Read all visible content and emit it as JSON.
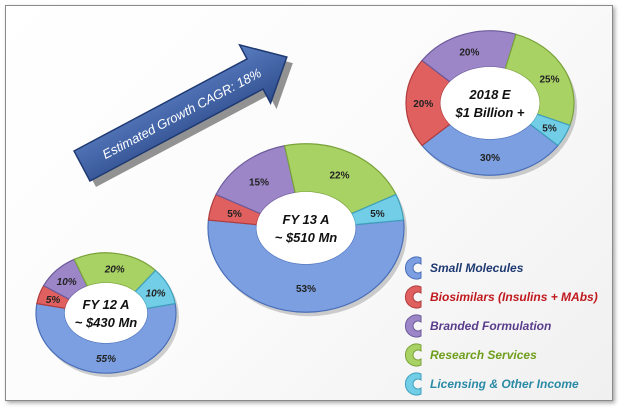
{
  "chart_data": {
    "type": "pie",
    "annotation": "Estimated Growth CAGR: 18%",
    "legend": [
      {
        "label": "Small Molecules",
        "color": "#7b9fe0"
      },
      {
        "label": "Biosimilars  (Insulins + MAbs)",
        "color": "#e06060"
      },
      {
        "label": "Branded Formulation",
        "color": "#9c86c8"
      },
      {
        "label": "Research Services",
        "color": "#a8d264"
      },
      {
        "label": "Licensing & Other Income",
        "color": "#72cde6"
      }
    ],
    "charts": [
      {
        "name": "fy12",
        "title_line1": "FY 12 A",
        "title_line2": "~ $430 Mn",
        "categories": [
          "Small Molecules",
          "Biosimilars",
          "Branded Formulation",
          "Research Services",
          "Licensing & Other Income"
        ],
        "values": [
          55,
          5,
          10,
          20,
          10
        ],
        "labels": [
          "55%",
          "5%",
          "10%",
          "20%",
          "10%"
        ]
      },
      {
        "name": "fy13",
        "title_line1": "FY 13 A",
        "title_line2": "~ $510 Mn",
        "categories": [
          "Small Molecules",
          "Biosimilars",
          "Branded Formulation",
          "Research Services",
          "Licensing & Other Income"
        ],
        "values": [
          53,
          5,
          15,
          22,
          5
        ],
        "labels": [
          "53%",
          "5%",
          "15%",
          "22%",
          "5%"
        ]
      },
      {
        "name": "fy18",
        "title_line1": "2018 E",
        "title_line2": "$1 Billion +",
        "categories": [
          "Small Molecules",
          "Biosimilars",
          "Branded Formulation",
          "Research Services",
          "Licensing & Other Income"
        ],
        "values": [
          30,
          20,
          20,
          25,
          5
        ],
        "labels": [
          "30%",
          "20%",
          "20%",
          "25%",
          "5%"
        ]
      }
    ]
  }
}
